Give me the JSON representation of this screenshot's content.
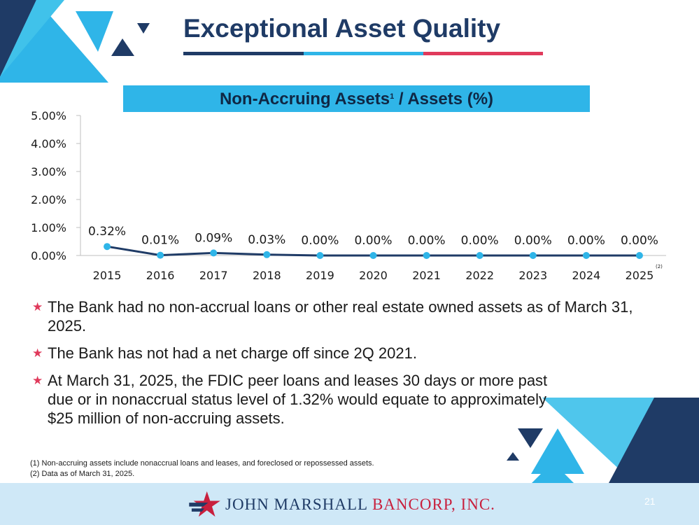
{
  "slide": {
    "title": "Exceptional Asset Quality",
    "page_number": "21"
  },
  "chart_data": {
    "type": "line",
    "title": "Non-Accruing Assets",
    "title_sup": "1",
    "title_suffix": " / Assets (%)",
    "categories": [
      "2015",
      "2016",
      "2017",
      "2018",
      "2019",
      "2020",
      "2021",
      "2022",
      "2023",
      "2024",
      "2025"
    ],
    "values": [
      0.32,
      0.01,
      0.09,
      0.03,
      0.0,
      0.0,
      0.0,
      0.0,
      0.0,
      0.0,
      0.0
    ],
    "data_labels": [
      "0.32%",
      "0.01%",
      "0.09%",
      "0.03%",
      "0.00%",
      "0.00%",
      "0.00%",
      "0.00%",
      "0.00%",
      "0.00%",
      "0.00%"
    ],
    "y_ticks": [
      "0.00%",
      "1.00%",
      "2.00%",
      "3.00%",
      "4.00%",
      "5.00%"
    ],
    "ylim": [
      0,
      5
    ],
    "last_category_note": "(2)",
    "line_color": "#1f3b66",
    "marker_color": "#2fb5e8",
    "grid": false
  },
  "bullets": [
    "The Bank had no non-accrual loans or other real estate owned assets as of March 31, 2025.",
    "The Bank has not had a net charge off since 2Q 2021.",
    "At March 31, 2025, the FDIC peer loans and leases 30 days or more past due or in nonaccrual status level of 1.32% would equate to approximately $25 million of non-accruing assets."
  ],
  "footnotes": [
    "(1)  Non-accruing assets include nonaccrual loans and leases, and foreclosed or repossessed assets.",
    "(2)  Data as of March 31, 2025."
  ],
  "logo": {
    "name_part1": "JOHN MARSHALL",
    "name_part2": " BANCORP, INC."
  },
  "colors": {
    "navy": "#1f3b66",
    "light_blue": "#2fb5e8",
    "red": "#e03a5b"
  }
}
